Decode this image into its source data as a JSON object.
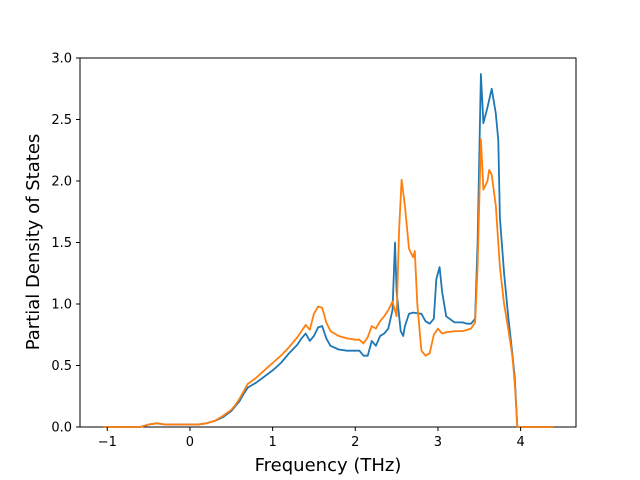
{
  "chart_data": {
    "type": "line",
    "title": "",
    "xlabel": "Frequency (THz)",
    "ylabel": "Partial Density of States",
    "xlim": [
      -1.33,
      4.67
    ],
    "ylim": [
      0.0,
      3.0
    ],
    "xticks": [
      {
        "value": -1,
        "label": "−1"
      },
      {
        "value": 0,
        "label": "0"
      },
      {
        "value": 1,
        "label": "1"
      },
      {
        "value": 2,
        "label": "2"
      },
      {
        "value": 3,
        "label": "3"
      },
      {
        "value": 4,
        "label": "4"
      }
    ],
    "yticks": [
      {
        "value": 0.0,
        "label": "0.0"
      },
      {
        "value": 0.5,
        "label": "0.5"
      },
      {
        "value": 1.0,
        "label": "1.0"
      },
      {
        "value": 1.5,
        "label": "1.5"
      },
      {
        "value": 2.0,
        "label": "2.0"
      },
      {
        "value": 2.5,
        "label": "2.5"
      },
      {
        "value": 3.0,
        "label": "3.0"
      }
    ],
    "grid": false,
    "legend": "none",
    "series": [
      {
        "color": "#1f77b4",
        "points": [
          [
            -1.05,
            0.0
          ],
          [
            -0.6,
            0.0
          ],
          [
            -0.55,
            0.01
          ],
          [
            -0.5,
            0.02
          ],
          [
            -0.4,
            0.03
          ],
          [
            -0.3,
            0.02
          ],
          [
            -0.2,
            0.02
          ],
          [
            0.0,
            0.02
          ],
          [
            0.1,
            0.02
          ],
          [
            0.2,
            0.03
          ],
          [
            0.3,
            0.05
          ],
          [
            0.4,
            0.08
          ],
          [
            0.5,
            0.13
          ],
          [
            0.55,
            0.17
          ],
          [
            0.6,
            0.21
          ],
          [
            0.65,
            0.27
          ],
          [
            0.7,
            0.32
          ],
          [
            0.8,
            0.36
          ],
          [
            0.9,
            0.41
          ],
          [
            1.0,
            0.46
          ],
          [
            1.1,
            0.52
          ],
          [
            1.2,
            0.6
          ],
          [
            1.3,
            0.67
          ],
          [
            1.35,
            0.72
          ],
          [
            1.4,
            0.76
          ],
          [
            1.45,
            0.7
          ],
          [
            1.5,
            0.74
          ],
          [
            1.55,
            0.81
          ],
          [
            1.6,
            0.82
          ],
          [
            1.65,
            0.72
          ],
          [
            1.7,
            0.66
          ],
          [
            1.8,
            0.63
          ],
          [
            1.9,
            0.62
          ],
          [
            2.0,
            0.62
          ],
          [
            2.05,
            0.62
          ],
          [
            2.1,
            0.58
          ],
          [
            2.15,
            0.58
          ],
          [
            2.2,
            0.7
          ],
          [
            2.25,
            0.66
          ],
          [
            2.3,
            0.74
          ],
          [
            2.35,
            0.76
          ],
          [
            2.4,
            0.8
          ],
          [
            2.45,
            0.95
          ],
          [
            2.48,
            1.5
          ],
          [
            2.5,
            1.1
          ],
          [
            2.55,
            0.78
          ],
          [
            2.58,
            0.74
          ],
          [
            2.6,
            0.82
          ],
          [
            2.65,
            0.92
          ],
          [
            2.7,
            0.93
          ],
          [
            2.8,
            0.92
          ],
          [
            2.85,
            0.86
          ],
          [
            2.9,
            0.84
          ],
          [
            2.95,
            0.88
          ],
          [
            2.98,
            1.2
          ],
          [
            3.02,
            1.3
          ],
          [
            3.05,
            1.1
          ],
          [
            3.1,
            0.9
          ],
          [
            3.2,
            0.85
          ],
          [
            3.3,
            0.85
          ],
          [
            3.35,
            0.84
          ],
          [
            3.4,
            0.84
          ],
          [
            3.45,
            0.88
          ],
          [
            3.48,
            1.5
          ],
          [
            3.52,
            2.87
          ],
          [
            3.55,
            2.47
          ],
          [
            3.6,
            2.6
          ],
          [
            3.65,
            2.75
          ],
          [
            3.7,
            2.55
          ],
          [
            3.73,
            2.33
          ],
          [
            3.75,
            1.7
          ],
          [
            3.8,
            1.25
          ],
          [
            3.85,
            0.9
          ],
          [
            3.9,
            0.6
          ],
          [
            3.93,
            0.4
          ],
          [
            3.96,
            0.0
          ],
          [
            4.4,
            0.0
          ]
        ]
      },
      {
        "color": "#ff7f0e",
        "points": [
          [
            -1.05,
            0.0
          ],
          [
            -0.6,
            0.0
          ],
          [
            -0.55,
            0.01
          ],
          [
            -0.5,
            0.02
          ],
          [
            -0.4,
            0.03
          ],
          [
            -0.3,
            0.02
          ],
          [
            -0.2,
            0.02
          ],
          [
            0.0,
            0.02
          ],
          [
            0.1,
            0.02
          ],
          [
            0.2,
            0.03
          ],
          [
            0.3,
            0.05
          ],
          [
            0.4,
            0.09
          ],
          [
            0.5,
            0.14
          ],
          [
            0.55,
            0.18
          ],
          [
            0.6,
            0.23
          ],
          [
            0.65,
            0.29
          ],
          [
            0.7,
            0.35
          ],
          [
            0.8,
            0.4
          ],
          [
            0.9,
            0.46
          ],
          [
            1.0,
            0.52
          ],
          [
            1.1,
            0.58
          ],
          [
            1.2,
            0.65
          ],
          [
            1.3,
            0.73
          ],
          [
            1.35,
            0.78
          ],
          [
            1.4,
            0.83
          ],
          [
            1.45,
            0.79
          ],
          [
            1.5,
            0.92
          ],
          [
            1.55,
            0.98
          ],
          [
            1.6,
            0.97
          ],
          [
            1.65,
            0.85
          ],
          [
            1.7,
            0.78
          ],
          [
            1.8,
            0.74
          ],
          [
            1.9,
            0.72
          ],
          [
            2.0,
            0.71
          ],
          [
            2.05,
            0.71
          ],
          [
            2.1,
            0.68
          ],
          [
            2.15,
            0.73
          ],
          [
            2.2,
            0.82
          ],
          [
            2.25,
            0.8
          ],
          [
            2.3,
            0.86
          ],
          [
            2.35,
            0.9
          ],
          [
            2.4,
            0.95
          ],
          [
            2.45,
            1.02
          ],
          [
            2.5,
            0.9
          ],
          [
            2.53,
            1.6
          ],
          [
            2.56,
            2.01
          ],
          [
            2.6,
            1.8
          ],
          [
            2.65,
            1.45
          ],
          [
            2.7,
            1.38
          ],
          [
            2.72,
            1.43
          ],
          [
            2.75,
            1.0
          ],
          [
            2.8,
            0.62
          ],
          [
            2.85,
            0.58
          ],
          [
            2.9,
            0.6
          ],
          [
            2.95,
            0.75
          ],
          [
            3.0,
            0.8
          ],
          [
            3.05,
            0.76
          ],
          [
            3.1,
            0.77
          ],
          [
            3.2,
            0.78
          ],
          [
            3.3,
            0.78
          ],
          [
            3.4,
            0.8
          ],
          [
            3.45,
            0.85
          ],
          [
            3.48,
            1.3
          ],
          [
            3.52,
            2.34
          ],
          [
            3.55,
            1.93
          ],
          [
            3.6,
            2.0
          ],
          [
            3.62,
            2.09
          ],
          [
            3.65,
            2.05
          ],
          [
            3.7,
            1.8
          ],
          [
            3.75,
            1.3
          ],
          [
            3.8,
            1.0
          ],
          [
            3.85,
            0.8
          ],
          [
            3.9,
            0.58
          ],
          [
            3.93,
            0.35
          ],
          [
            3.96,
            0.0
          ],
          [
            4.4,
            0.0
          ]
        ]
      }
    ]
  }
}
